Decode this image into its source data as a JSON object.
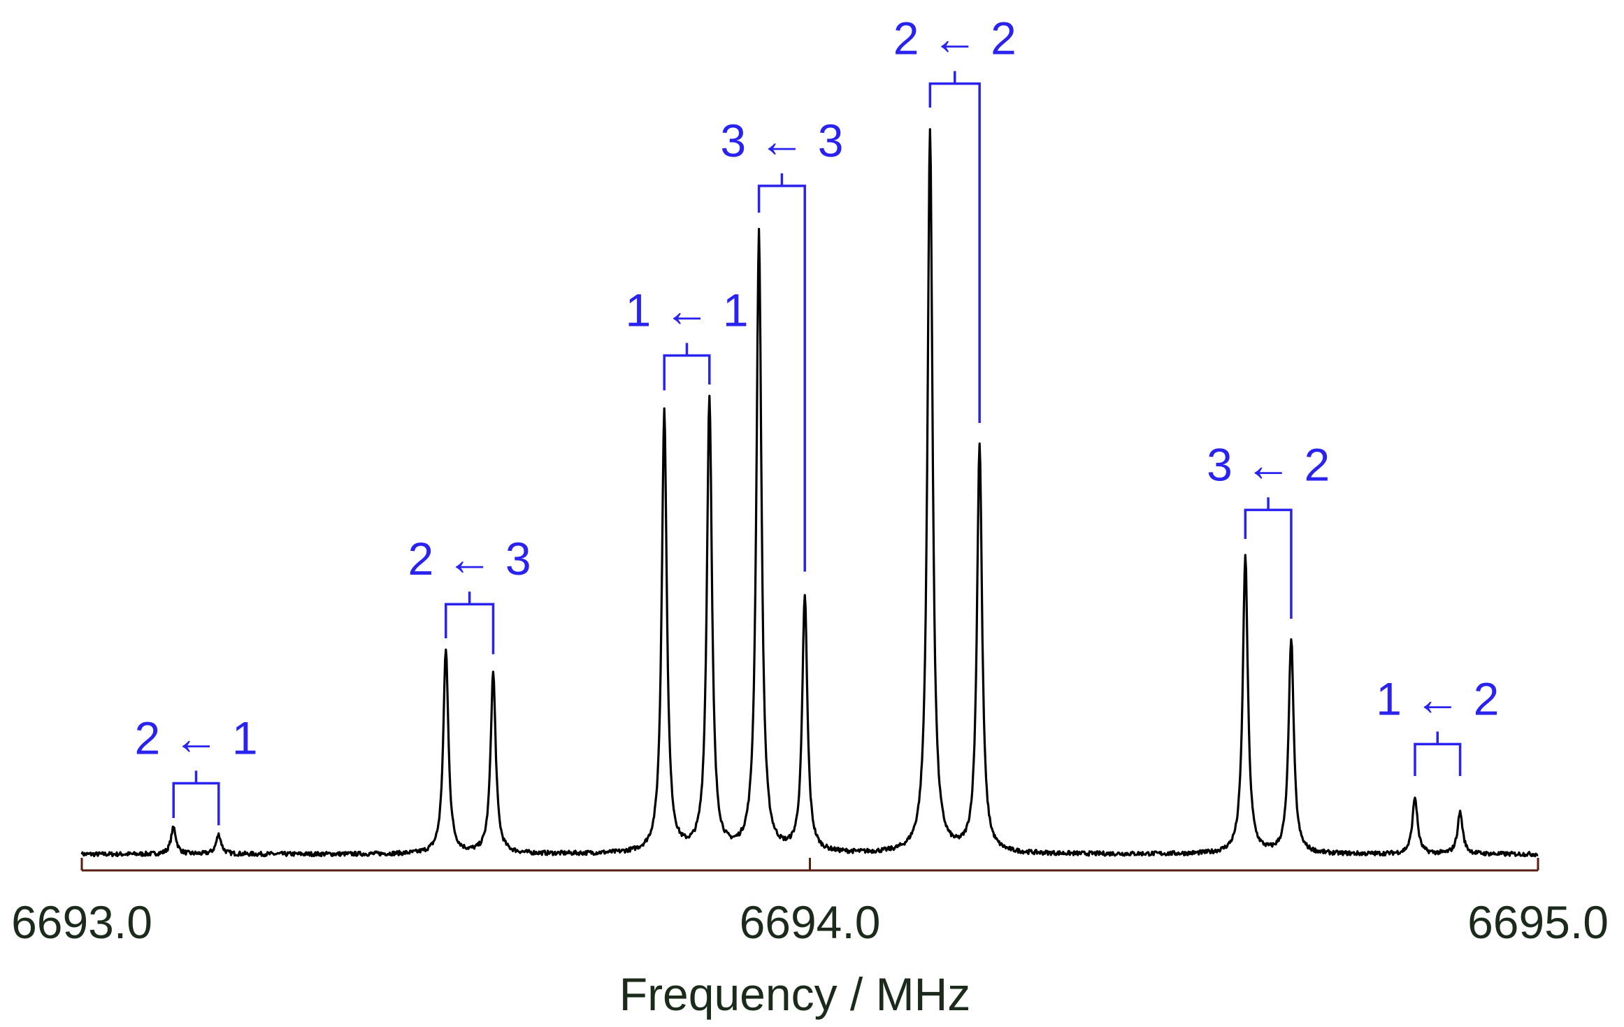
{
  "chart_data": {
    "type": "line",
    "title": "",
    "xlabel": "Frequency / MHz",
    "ylabel": "",
    "xlim": [
      6693.0,
      6695.0
    ],
    "ylim": [
      0,
      1.0
    ],
    "x_ticks": [
      {
        "value": 6693.0,
        "label": "6693.0"
      },
      {
        "value": 6694.0,
        "label": "6694.0"
      },
      {
        "value": 6695.0,
        "label": "6695.0"
      }
    ],
    "grid": false,
    "legend": "none",
    "colors": {
      "spectrum": "#000000",
      "axis": "#5a1d12",
      "annotation": "#2a22ee",
      "text": "#1b2a1b"
    },
    "peaks": [
      {
        "x": 6693.126,
        "y": 0.037
      },
      {
        "x": 6693.188,
        "y": 0.027
      },
      {
        "x": 6693.5,
        "y": 0.282
      },
      {
        "x": 6693.565,
        "y": 0.25
      },
      {
        "x": 6693.8,
        "y": 0.61
      },
      {
        "x": 6693.862,
        "y": 0.628
      },
      {
        "x": 6693.93,
        "y": 0.855
      },
      {
        "x": 6693.993,
        "y": 0.353
      },
      {
        "x": 6694.165,
        "y": 1.0
      },
      {
        "x": 6694.233,
        "y": 0.563
      },
      {
        "x": 6694.598,
        "y": 0.41
      },
      {
        "x": 6694.661,
        "y": 0.297
      },
      {
        "x": 6694.831,
        "y": 0.078
      },
      {
        "x": 6694.893,
        "y": 0.058
      }
    ],
    "annotations": [
      {
        "label": "2 ← 1",
        "x1": 6693.126,
        "x2": 6693.188,
        "bracket_y": 0.098,
        "left_end": 0.05,
        "right_end": 0.04
      },
      {
        "label": "2 ← 3",
        "x1": 6693.5,
        "x2": 6693.565,
        "bracket_y": 0.345,
        "left_end": 0.298,
        "right_end": 0.276
      },
      {
        "label": "1 ← 1",
        "x1": 6693.8,
        "x2": 6693.862,
        "bracket_y": 0.688,
        "left_end": 0.64,
        "right_end": 0.648
      },
      {
        "label": "3 ← 3",
        "x1": 6693.93,
        "x2": 6693.993,
        "bracket_y": 0.922,
        "left_end": 0.885,
        "right_end": 0.39
      },
      {
        "label": "2 ← 2",
        "x1": 6694.165,
        "x2": 6694.233,
        "bracket_y": 1.063,
        "left_end": 1.03,
        "right_end": 0.595
      },
      {
        "label": "3 ← 2",
        "x1": 6694.598,
        "x2": 6694.661,
        "bracket_y": 0.475,
        "left_end": 0.435,
        "right_end": 0.325
      },
      {
        "label": "1 ← 2",
        "x1": 6694.831,
        "x2": 6694.893,
        "bracket_y": 0.152,
        "left_end": 0.108,
        "right_end": 0.108
      }
    ]
  }
}
